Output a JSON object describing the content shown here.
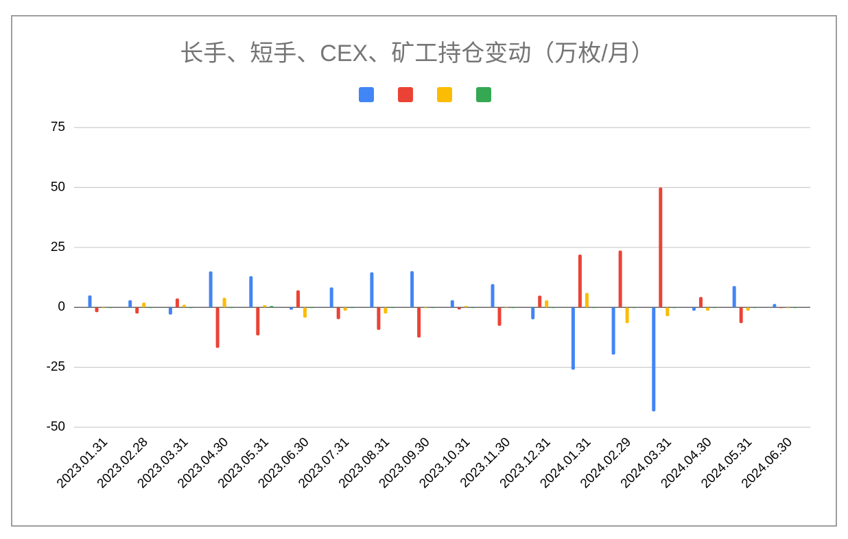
{
  "chart_data": {
    "type": "bar",
    "title": "长手、短手、CEX、矿工持仓变动（万枚/月）",
    "categories": [
      "2023.01.31",
      "2023.02.28",
      "2023.03.31",
      "2023.04.30",
      "2023.05.31",
      "2023.06.30",
      "2023.07.31",
      "2023.08.31",
      "2023.09.30",
      "2023.10.31",
      "2023.11.30",
      "2023.12.31",
      "2024.01.31",
      "2024.02.29",
      "2024.03.31",
      "2024.04.30",
      "2024.05.31",
      "2024.06.30"
    ],
    "series": [
      {
        "color": "#4285f4",
        "values": [
          5,
          3,
          -3,
          15,
          13,
          -1,
          8.3,
          14.6,
          15.1,
          3,
          9.7,
          -5,
          -26,
          -19.7,
          -43.4,
          -1.4,
          8.9,
          1.4
        ]
      },
      {
        "color": "#ea4335",
        "values": [
          -2,
          -2.6,
          3.7,
          -16.9,
          -11.7,
          7.1,
          -4.9,
          -9.4,
          -12.6,
          -0.9,
          -7.7,
          4.9,
          22,
          23.7,
          50,
          4.3,
          -6.6,
          -0.3
        ]
      },
      {
        "color": "#fbbc04",
        "values": [
          -0.3,
          2,
          1.1,
          4,
          0.9,
          -4.3,
          -1.4,
          -2.6,
          0,
          0.6,
          0,
          2.9,
          6,
          -6.6,
          -3.7,
          -1.4,
          -1.4,
          0
        ]
      },
      {
        "color": "#34a853",
        "values": [
          -0.3,
          -0.3,
          -0.3,
          -0.3,
          0.6,
          -0.3,
          -0.3,
          -0.3,
          -0.3,
          -0.3,
          -0.3,
          -0.3,
          -0.3,
          -0.3,
          -0.3,
          -0.3,
          -0.3,
          -0.3
        ]
      }
    ],
    "ylim": [
      -50,
      75
    ],
    "yticks": [
      -50,
      -25,
      0,
      25,
      50,
      75
    ],
    "grid": true
  }
}
